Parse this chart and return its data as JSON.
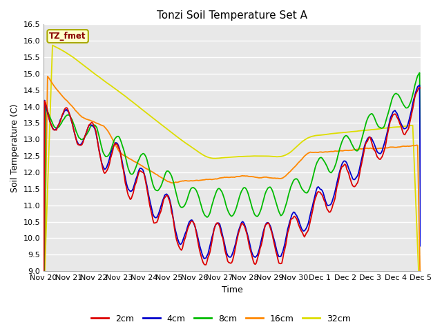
{
  "title": "Tonzi Soil Temperature Set A",
  "xlabel": "Time",
  "ylabel": "Soil Temperature (C)",
  "ylim": [
    9.0,
    16.5
  ],
  "yticks": [
    9.0,
    9.5,
    10.0,
    10.5,
    11.0,
    11.5,
    12.0,
    12.5,
    13.0,
    13.5,
    14.0,
    14.5,
    15.0,
    15.5,
    16.0,
    16.5
  ],
  "xtick_labels": [
    "Nov 20",
    "Nov 21",
    "Nov 22",
    "Nov 23",
    "Nov 24",
    "Nov 25",
    "Nov 26",
    "Nov 27",
    "Nov 28",
    "Nov 29",
    "Nov 30",
    "Dec 1",
    "Dec 2",
    "Dec 3",
    "Dec 4",
    "Dec 5"
  ],
  "colors": {
    "2cm": "#dd0000",
    "4cm": "#0000cc",
    "8cm": "#00bb00",
    "16cm": "#ff8800",
    "32cm": "#dddd00"
  },
  "legend_label": "TZ_fmet",
  "legend_box_facecolor": "#ffffcc",
  "legend_box_edgecolor": "#aaaa00",
  "legend_text_color": "#880000",
  "fig_facecolor": "#ffffff",
  "plot_facecolor": "#e8e8e8",
  "grid_color": "#ffffff",
  "title_fontsize": 11,
  "axis_label_fontsize": 9,
  "tick_fontsize": 8
}
